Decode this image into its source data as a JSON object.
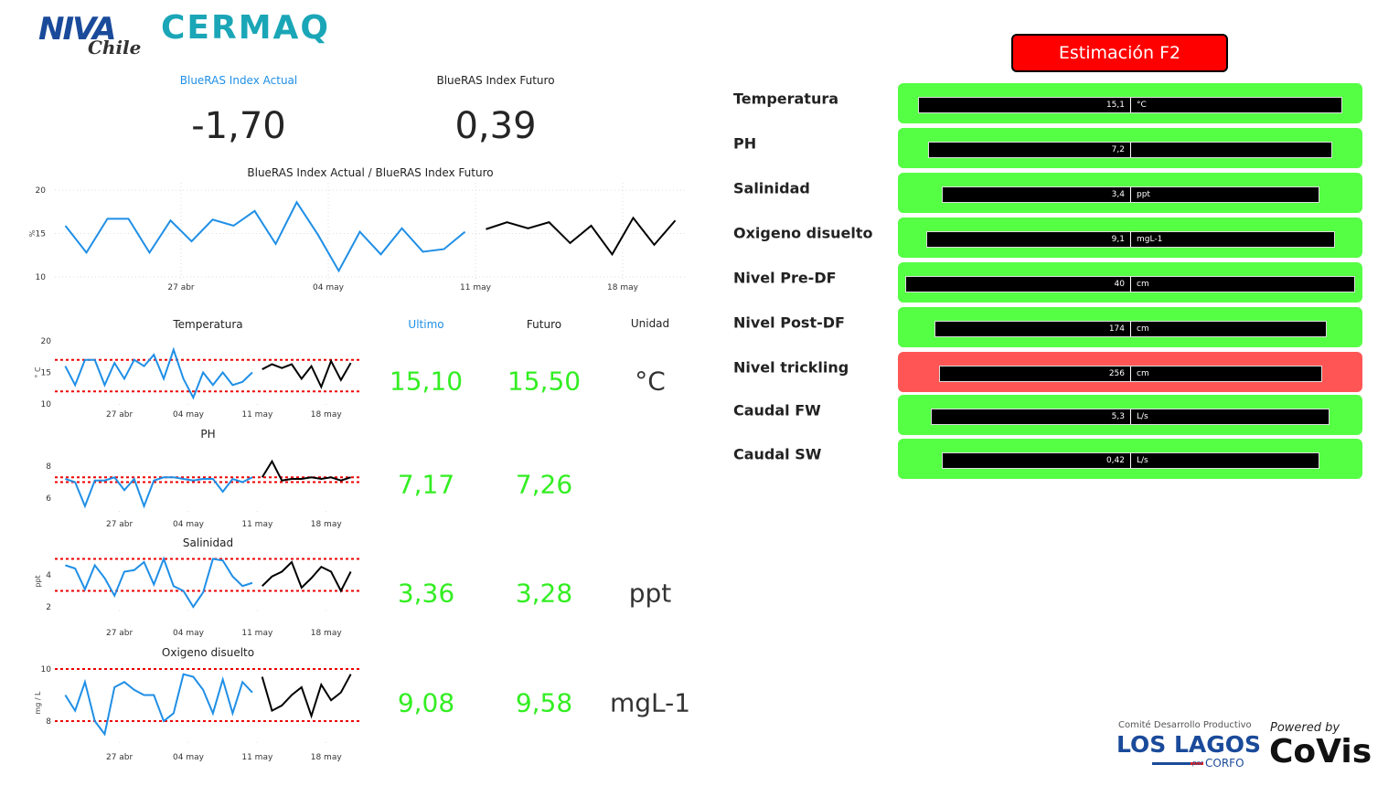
{
  "logos": {
    "niva": "NIVA",
    "niva_sub": "Chile",
    "cermaq": "CERMAQ",
    "comite": "Comité Desarrollo Productivo",
    "los_lagos": "LOS LAGOS",
    "corfo_por": "por",
    "corfo": "CORFO",
    "powered": "Powered by",
    "covis": "CoVis"
  },
  "kpis": [
    {
      "label": "BlueRAS Index Actual",
      "value": "-1,70"
    },
    {
      "label": "BlueRAS Index Futuro",
      "value": "0,39"
    }
  ],
  "main_chart": {
    "type": "line",
    "title": "BlueRAS Index Actual / BlueRAS Index Futuro",
    "y_label": "%",
    "ylim": [
      10,
      20
    ],
    "yticks": [
      10,
      15,
      20
    ],
    "xlim": [
      -0.5,
      29.5
    ],
    "xticks": [
      {
        "value": 5.5,
        "label": "27 abr"
      },
      {
        "value": 12.5,
        "label": "04 may"
      },
      {
        "value": 19.5,
        "label": "11 may"
      },
      {
        "value": 26.5,
        "label": "18 may"
      }
    ],
    "grid": true,
    "series": [
      {
        "color": "#1f8fe6",
        "values": [
          15.9,
          12.8,
          16.7,
          16.7,
          12.8,
          16.5,
          14.1,
          16.6,
          15.9,
          17.6,
          13.8,
          18.6,
          14.9,
          10.7,
          15.2,
          12.6,
          15.6,
          12.9,
          13.2,
          15.2,
          null,
          null,
          null,
          null,
          null,
          null,
          null,
          null,
          null,
          null
        ]
      },
      {
        "color": "#000000",
        "values": [
          null,
          null,
          null,
          null,
          null,
          null,
          null,
          null,
          null,
          null,
          null,
          null,
          null,
          null,
          null,
          null,
          null,
          null,
          null,
          null,
          15.5,
          16.3,
          15.6,
          16.3,
          13.9,
          15.9,
          12.6,
          16.8,
          13.7,
          16.5
        ]
      }
    ]
  },
  "small_charts": [
    {
      "type": "line",
      "title": "Temperatura",
      "y_label": "° C",
      "ylim": [
        10,
        20
      ],
      "yticks": [
        10,
        15,
        20
      ],
      "thresholds": [
        17,
        12
      ],
      "xlim": [
        -0.5,
        29.5
      ],
      "xticks": [
        {
          "value": 5.5,
          "label": "27 abr"
        },
        {
          "value": 12.5,
          "label": "04 may"
        },
        {
          "value": 19.5,
          "label": "11 may"
        },
        {
          "value": 26.5,
          "label": "18 may"
        }
      ],
      "series": [
        {
          "color": "#1f8fe6",
          "values": [
            16,
            13,
            17,
            17,
            13,
            16.5,
            14,
            17,
            16,
            17.8,
            14,
            18.6,
            14,
            11,
            15,
            13,
            15,
            13,
            13.5,
            15,
            null,
            null,
            null,
            null,
            null,
            null,
            null,
            null,
            null,
            null
          ]
        },
        {
          "color": "#000000",
          "values": [
            null,
            null,
            null,
            null,
            null,
            null,
            null,
            null,
            null,
            null,
            null,
            null,
            null,
            null,
            null,
            null,
            null,
            null,
            null,
            null,
            15.5,
            16.3,
            15.7,
            16.3,
            14,
            16,
            12.7,
            16.8,
            13.8,
            16.5
          ]
        }
      ]
    },
    {
      "type": "line",
      "title": "PH",
      "ylim": [
        5.2,
        8.6
      ],
      "yticks": [
        6,
        8
      ],
      "thresholds": [
        7.3,
        7.0
      ],
      "xlim": [
        -0.5,
        29.5
      ],
      "xticks": [
        {
          "value": 5.5,
          "label": "27 abr"
        },
        {
          "value": 12.5,
          "label": "04 may"
        },
        {
          "value": 19.5,
          "label": "11 may"
        },
        {
          "value": 26.5,
          "label": "18 may"
        }
      ],
      "series": [
        {
          "color": "#1f8fe6",
          "values": [
            7.2,
            7.0,
            5.5,
            7.1,
            7.1,
            7.3,
            6.5,
            7.2,
            5.5,
            7.1,
            7.3,
            7.3,
            7.2,
            7.1,
            7.2,
            7.2,
            6.4,
            7.2,
            7.0,
            7.3,
            null,
            null,
            null,
            null,
            null,
            null,
            null,
            null,
            null,
            null
          ]
        },
        {
          "color": "#000000",
          "values": [
            null,
            null,
            null,
            null,
            null,
            null,
            null,
            null,
            null,
            null,
            null,
            null,
            null,
            null,
            null,
            null,
            null,
            null,
            null,
            null,
            7.3,
            8.3,
            7.1,
            7.2,
            7.2,
            7.3,
            7.2,
            7.3,
            7.1,
            7.3
          ]
        }
      ]
    },
    {
      "type": "line",
      "title": "Salinidad",
      "y_label": "ppt",
      "ylim": [
        1.8,
        5.4
      ],
      "yticks": [
        2,
        4
      ],
      "thresholds": [
        5,
        3
      ],
      "xlim": [
        -0.5,
        29.5
      ],
      "xticks": [
        {
          "value": 5.5,
          "label": "27 abr"
        },
        {
          "value": 12.5,
          "label": "04 may"
        },
        {
          "value": 19.5,
          "label": "11 may"
        },
        {
          "value": 26.5,
          "label": "18 may"
        }
      ],
      "series": [
        {
          "color": "#1f8fe6",
          "values": [
            4.6,
            4.4,
            3.1,
            4.6,
            3.8,
            2.7,
            4.2,
            4.3,
            4.8,
            3.4,
            5.0,
            3.3,
            3.0,
            2.0,
            2.9,
            5.0,
            4.9,
            3.9,
            3.3,
            3.5,
            null,
            null,
            null,
            null,
            null,
            null,
            null,
            null,
            null,
            null
          ]
        },
        {
          "color": "#000000",
          "values": [
            null,
            null,
            null,
            null,
            null,
            null,
            null,
            null,
            null,
            null,
            null,
            null,
            null,
            null,
            null,
            null,
            null,
            null,
            null,
            null,
            3.3,
            3.9,
            4.2,
            4.8,
            3.2,
            3.8,
            4.5,
            4.2,
            3.0,
            4.2
          ]
        }
      ]
    },
    {
      "type": "line",
      "title": "Oxigeno disuelto",
      "y_label": "mg / L",
      "ylim": [
        7.2,
        10.2
      ],
      "yticks": [
        8,
        10
      ],
      "thresholds": [
        10,
        8
      ],
      "xlim": [
        -0.5,
        29.5
      ],
      "xticks": [
        {
          "value": 5.5,
          "label": "27 abr"
        },
        {
          "value": 12.5,
          "label": "04 may"
        },
        {
          "value": 19.5,
          "label": "11 may"
        },
        {
          "value": 26.5,
          "label": "18 may"
        }
      ],
      "series": [
        {
          "color": "#1f8fe6",
          "values": [
            9.0,
            8.4,
            9.5,
            8.0,
            7.5,
            9.3,
            9.5,
            9.2,
            9.0,
            9.0,
            8.0,
            8.3,
            9.8,
            9.7,
            9.2,
            8.3,
            9.6,
            8.3,
            9.5,
            9.1,
            null,
            null,
            null,
            null,
            null,
            null,
            null,
            null,
            null,
            null
          ]
        },
        {
          "color": "#000000",
          "values": [
            null,
            null,
            null,
            null,
            null,
            null,
            null,
            null,
            null,
            null,
            null,
            null,
            null,
            null,
            null,
            null,
            null,
            null,
            null,
            null,
            9.7,
            8.4,
            8.6,
            9.0,
            9.3,
            8.2,
            9.4,
            8.8,
            9.1,
            9.8
          ]
        }
      ]
    }
  ],
  "table": {
    "headers": [
      "Ultimo",
      "Futuro",
      "Unidad"
    ],
    "rows": [
      {
        "ultimo": "15,10",
        "futuro": "15,50",
        "unidad": "°C"
      },
      {
        "ultimo": "7,17",
        "futuro": "7,26"
      },
      {
        "ultimo": "3,36",
        "futuro": "3,28",
        "unidad": "ppt"
      },
      {
        "ultimo": "9,08",
        "futuro": "9,58",
        "unidad": "mgL-1"
      }
    ]
  },
  "estimacion": {
    "title": "Estimación F2",
    "ok_color": "#55ff44",
    "alert_color": "#ff5555",
    "rows": [
      {
        "label": "Temperatura",
        "value": "15,1",
        "unit": "°C",
        "status": "ok"
      },
      {
        "label": "PH",
        "value": "7,2",
        "status": "ok"
      },
      {
        "label": "Salinidad",
        "value": "3,4",
        "unit": "ppt",
        "status": "ok"
      },
      {
        "label": "Oxigeno disuelto",
        "value": "9,1",
        "unit": "mgL-1",
        "status": "ok"
      },
      {
        "label": "Nivel Pre-DF",
        "value": "40",
        "unit": "cm",
        "status": "ok"
      },
      {
        "label": "Nivel Post-DF",
        "value": "174",
        "unit": "cm",
        "status": "ok"
      },
      {
        "label": "Nivel trickling",
        "value": "256",
        "unit": "cm",
        "status": "alert"
      },
      {
        "label": "Caudal FW",
        "value": "5,3",
        "unit": "L/s",
        "status": "ok"
      },
      {
        "label": "Caudal SW",
        "value": "0,42",
        "unit": "L/s",
        "status": "ok"
      }
    ]
  }
}
